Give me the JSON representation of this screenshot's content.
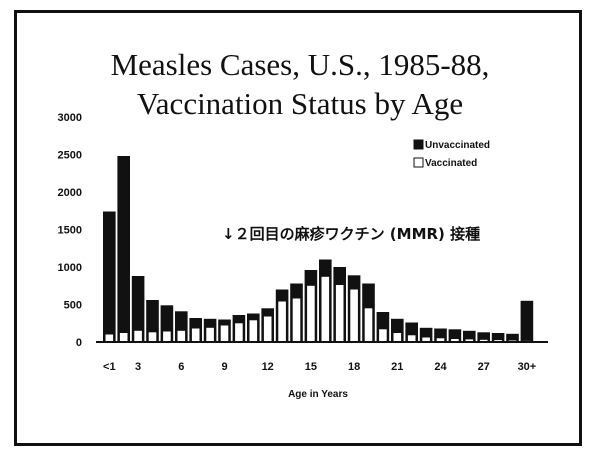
{
  "chart_data": {
    "type": "bar",
    "title_line1": "Measles Cases, U.S., 1985-88,",
    "title_line2": "Vaccination Status by Age",
    "xlabel": "Age in Years",
    "ylabel": "",
    "ylim": [
      0,
      3000
    ],
    "yticks": [
      "3000",
      "2500",
      "2000",
      "1500",
      "1000",
      "500",
      "0"
    ],
    "xticks": [
      {
        "index": 0,
        "label": "<1"
      },
      {
        "index": 2,
        "label": "3"
      },
      {
        "index": 5,
        "label": "6"
      },
      {
        "index": 8,
        "label": "9"
      },
      {
        "index": 11,
        "label": "12"
      },
      {
        "index": 14,
        "label": "15"
      },
      {
        "index": 17,
        "label": "18"
      },
      {
        "index": 20,
        "label": "21"
      },
      {
        "index": 23,
        "label": "24"
      },
      {
        "index": 26,
        "label": "27"
      },
      {
        "index": 29,
        "label": "30+"
      }
    ],
    "categories": [
      "<1",
      "1",
      "2",
      "3",
      "4",
      "5",
      "6",
      "7",
      "8",
      "9",
      "10",
      "11",
      "12",
      "13",
      "14",
      "15",
      "16",
      "17",
      "18",
      "19",
      "20",
      "21",
      "22",
      "23",
      "24",
      "25",
      "26",
      "27",
      "28",
      "30+"
    ],
    "series": [
      {
        "name": "Unvaccinated",
        "color": "#111111",
        "values": [
          1740,
          2480,
          880,
          560,
          490,
          410,
          320,
          310,
          300,
          360,
          380,
          450,
          700,
          780,
          960,
          1100,
          1000,
          890,
          780,
          400,
          310,
          260,
          190,
          180,
          170,
          150,
          130,
          120,
          110,
          550
        ]
      },
      {
        "name": "Vaccinated",
        "color": "#ffffff",
        "values": [
          100,
          120,
          150,
          130,
          140,
          150,
          180,
          190,
          220,
          250,
          290,
          340,
          540,
          580,
          750,
          870,
          760,
          700,
          450,
          170,
          120,
          90,
          60,
          50,
          40,
          35,
          30,
          25,
          20,
          15
        ]
      }
    ],
    "legend_position": "top-right",
    "grid": false,
    "annotation": "↓２回目の麻疹ワクチン (MMR) 接種"
  }
}
